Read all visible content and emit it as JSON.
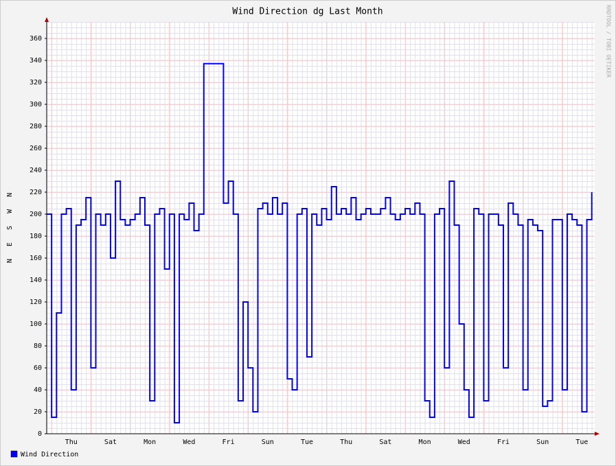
{
  "chart_data": {
    "type": "line",
    "title": "Wind Direction dg Last Month",
    "y_label": "N   E   S   W   N",
    "watermark": "RRDTOOL / TOBI OETIKER",
    "categories": [
      null,
      null,
      null,
      null,
      null,
      "Thu",
      null,
      null,
      null,
      null,
      null,
      null,
      null,
      "Sat",
      null,
      null,
      null,
      null,
      null,
      null,
      null,
      "Mon",
      null,
      null,
      null,
      null,
      null,
      null,
      null,
      "Wed",
      null,
      null,
      null,
      null,
      null,
      null,
      null,
      "Fri",
      null,
      null,
      null,
      null,
      null,
      null,
      null,
      "Sun",
      null,
      null,
      null,
      null,
      null,
      null,
      null,
      "Tue",
      null,
      null,
      null,
      null,
      null,
      null,
      null,
      "Thu",
      null,
      null,
      null,
      null,
      null,
      null,
      null,
      "Sat",
      null,
      null,
      null,
      null,
      null,
      null,
      null,
      "Mon",
      null,
      null,
      null,
      null,
      null,
      null,
      null,
      "Wed",
      null,
      null,
      null,
      null,
      null,
      null,
      null,
      "Fri",
      null,
      null,
      null,
      null,
      null,
      null,
      null,
      "Sun",
      null,
      null,
      null,
      null,
      null,
      null,
      null,
      "Tue",
      null,
      null
    ],
    "series": [
      {
        "name": "Wind Direction",
        "color": "#0000ff",
        "values": [
          200,
          15,
          110,
          200,
          205,
          40,
          190,
          195,
          215,
          60,
          200,
          190,
          200,
          160,
          230,
          195,
          190,
          195,
          200,
          215,
          190,
          30,
          200,
          205,
          150,
          200,
          10,
          200,
          195,
          210,
          185,
          200,
          337,
          337,
          337,
          337,
          210,
          230,
          200,
          30,
          120,
          60,
          20,
          205,
          210,
          200,
          215,
          200,
          210,
          50,
          40,
          200,
          205,
          70,
          200,
          190,
          205,
          195,
          225,
          200,
          205,
          200,
          215,
          195,
          200,
          205,
          200,
          200,
          205,
          215,
          200,
          195,
          200,
          205,
          200,
          210,
          200,
          30,
          15,
          200,
          205,
          60,
          230,
          190,
          100,
          40,
          15,
          205,
          200,
          30,
          200,
          200,
          190,
          60,
          210,
          200,
          190,
          40,
          195,
          190,
          185,
          25,
          30,
          195,
          195,
          40,
          200,
          195,
          190,
          20,
          195,
          220
        ]
      }
    ],
    "ylim": [
      0,
      375
    ],
    "yticks": [
      0,
      20,
      40,
      60,
      80,
      100,
      120,
      140,
      160,
      180,
      200,
      220,
      240,
      260,
      280,
      300,
      320,
      340,
      360
    ],
    "grid": true,
    "legend": "bottom-left"
  }
}
